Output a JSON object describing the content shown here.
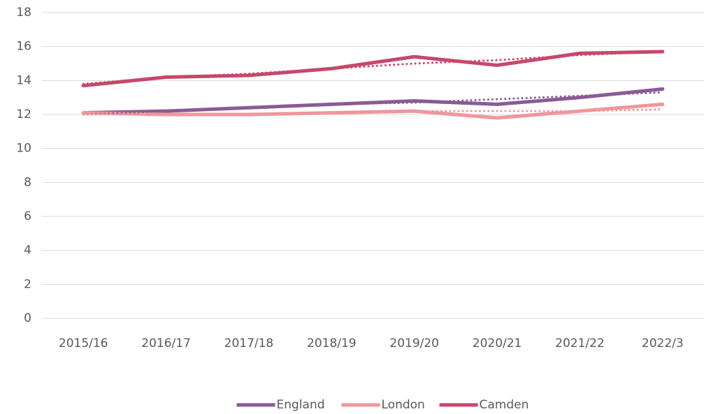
{
  "chart_data": {
    "type": "line",
    "categories": [
      "2015/16",
      "2016/17",
      "2017/18",
      "2018/19",
      "2019/20",
      "2020/21",
      "2021/22",
      "2022/3"
    ],
    "series": [
      {
        "name": "England",
        "color": "#8b5a96",
        "values": [
          12.1,
          12.2,
          12.4,
          12.6,
          12.8,
          12.6,
          13.0,
          13.5
        ]
      },
      {
        "name": "London",
        "color": "#f0969b",
        "values": [
          12.1,
          12.0,
          12.0,
          12.1,
          12.2,
          11.8,
          12.2,
          12.6
        ]
      },
      {
        "name": "Camden",
        "color": "#c8476a",
        "values": [
          13.7,
          14.2,
          14.3,
          14.7,
          15.4,
          14.9,
          15.6,
          15.7
        ]
      },
      {
        "color": "#8b5a96",
        "dash": "dotted",
        "values": [
          12.0,
          12.2,
          12.4,
          12.6,
          12.7,
          12.9,
          13.1,
          13.3
        ]
      },
      {
        "color": "#f0969b",
        "dash": "dotted",
        "values": [
          12.0,
          12.0,
          12.0,
          12.1,
          12.2,
          12.2,
          12.2,
          12.3
        ]
      },
      {
        "color": "#c8476a",
        "dash": "dotted",
        "values": [
          13.8,
          14.2,
          14.4,
          14.7,
          15.0,
          15.2,
          15.5,
          15.7
        ]
      }
    ],
    "ylim": [
      0,
      18
    ],
    "yticks": [
      0,
      2,
      4,
      6,
      8,
      10,
      12,
      14,
      16,
      18
    ],
    "grid": true,
    "legend": "bottom"
  }
}
